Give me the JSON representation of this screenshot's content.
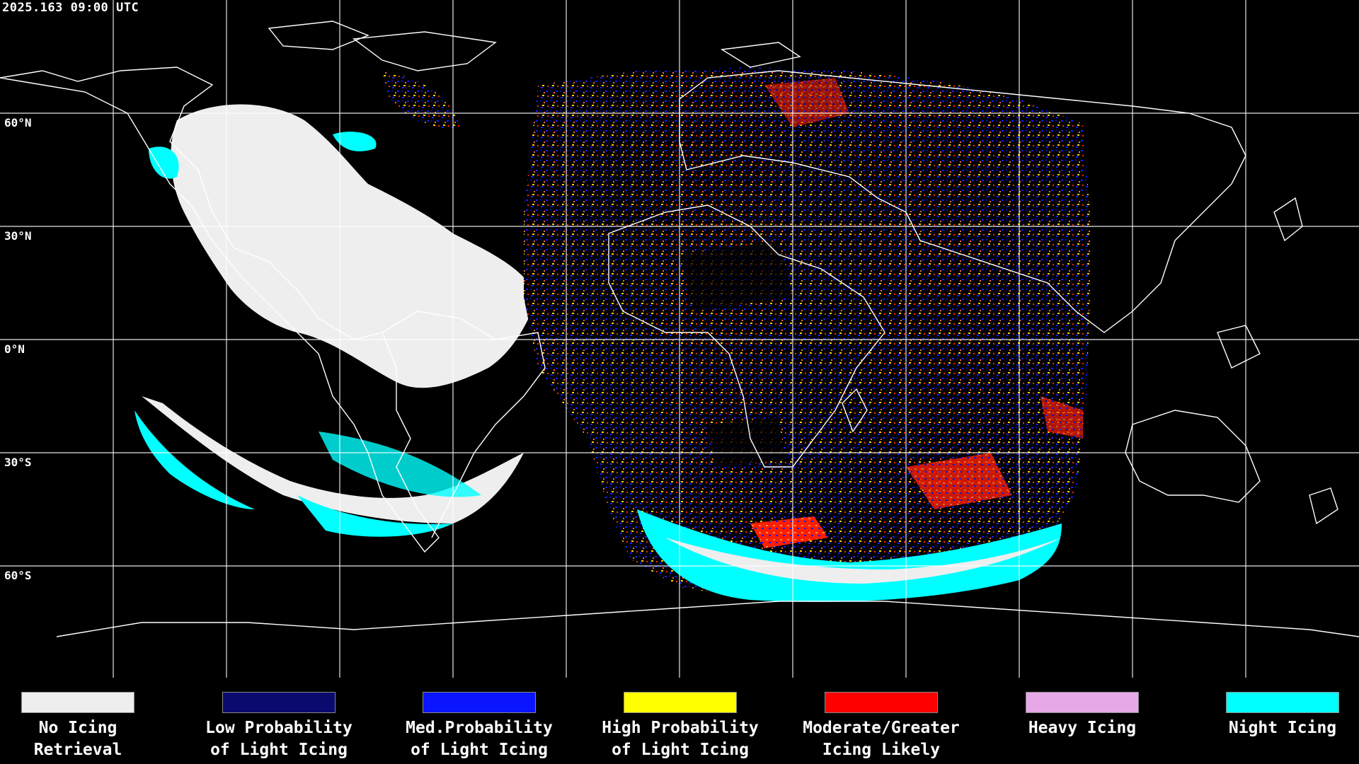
{
  "timestamp": "2025.163 09:00 UTC",
  "latitude_labels": [
    "60°N",
    "30°N",
    "0°N",
    "30°S",
    "60°S"
  ],
  "legend": [
    {
      "line1": "No Icing",
      "line2": "Retrieval",
      "color": "#eeeeee"
    },
    {
      "line1": "Low Probability",
      "line2": "of Light Icing",
      "color": "#0a0a6e"
    },
    {
      "line1": "Med.Probability",
      "line2": "of Light Icing",
      "color": "#0a14ff"
    },
    {
      "line1": "High Probability",
      "line2": "of Light Icing",
      "color": "#ffff00"
    },
    {
      "line1": "Moderate/Greater",
      "line2": "Icing Likely",
      "color": "#ff0000"
    },
    {
      "line1": "Heavy Icing",
      "line2": "",
      "color": "#e6a8e6"
    },
    {
      "line1": "Night Icing",
      "line2": "",
      "color": "#00ffff"
    }
  ],
  "colors": {
    "background": "#000000",
    "grid": "#ffffff",
    "coastline": "#ffffff",
    "no_icing": "#eeeeee",
    "night_icing": "#00ffff"
  }
}
